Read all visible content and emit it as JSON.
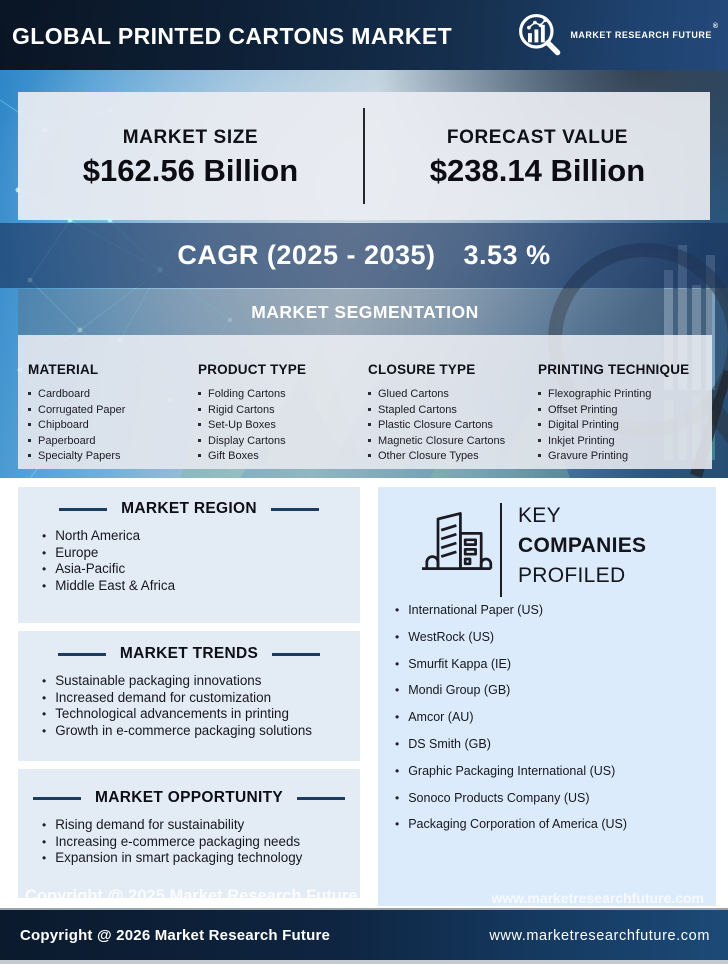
{
  "header": {
    "title": "GLOBAL PRINTED CARTONS MARKET",
    "brand": "MARKET RESEARCH FUTURE",
    "registered": "®"
  },
  "stats": {
    "market_size_label": "MARKET SIZE",
    "market_size_value": "$162.56 Billion",
    "forecast_label": "FORECAST VALUE",
    "forecast_value": "$238.14 Billion"
  },
  "cagr": {
    "label": "CAGR (2025 - 2035)",
    "value": "3.53 %"
  },
  "segmentation": {
    "title": "MARKET SEGMENTATION",
    "columns": [
      {
        "title": "MATERIAL",
        "items": [
          "Cardboard",
          "Corrugated Paper",
          "Chipboard",
          "Paperboard",
          "Specialty Papers"
        ]
      },
      {
        "title": "PRODUCT TYPE",
        "items": [
          "Folding Cartons",
          "Rigid Cartons",
          "Set-Up Boxes",
          "Display Cartons",
          "Gift Boxes"
        ]
      },
      {
        "title": "CLOSURE TYPE",
        "items": [
          "Glued Cartons",
          "Stapled Cartons",
          "Plastic Closure Cartons",
          "Magnetic Closure Cartons",
          "Other Closure Types"
        ]
      },
      {
        "title": "PRINTING TECHNIQUE",
        "items": [
          "Flexographic Printing",
          "Offset Printing",
          "Digital Printing",
          "Inkjet Printing",
          "Gravure Printing"
        ]
      }
    ]
  },
  "region": {
    "title": "MARKET REGION",
    "items": [
      "North America",
      "Europe",
      "Asia-Pacific",
      "Middle East & Africa"
    ]
  },
  "trends": {
    "title": "MARKET TRENDS",
    "items": [
      "Sustainable packaging innovations",
      "Increased demand for customization",
      "Technological advancements in printing",
      "Growth in e-commerce packaging solutions"
    ]
  },
  "opportunity": {
    "title": "MARKET OPPORTUNITY",
    "items": [
      "Rising demand for sustainability",
      "Increasing e-commerce packaging needs",
      "Expansion in smart packaging technology"
    ]
  },
  "companies": {
    "title_line1": "KEY",
    "title_line2": "COMPANIES",
    "title_line3": "PROFILED",
    "items": [
      "International Paper (US)",
      "WestRock (US)",
      "Smurfit Kappa (IE)",
      "Mondi Group (GB)",
      "Amcor (AU)",
      "DS Smith (GB)",
      "Graphic Packaging International (US)",
      "Sonoco Products Company (US)",
      "Packaging Corporation of America (US)"
    ]
  },
  "watermark": {
    "left": "Copyright @ 2025 Market Research Future",
    "right": "www.marketresearchfuture.com"
  },
  "footer": {
    "copyright": "Copyright @ 2026 Market Research Future",
    "website": "www.marketresearchfuture.com"
  },
  "colors": {
    "header_navy": "#0e2138",
    "accent_blue": "#2e86c8",
    "band_navy": "#18305a",
    "panel_gray": "#e9ecf1",
    "panel_blue_left": "#e3ecf5",
    "panel_blue_right": "#dcebfb",
    "rule_navy": "#1c3c63",
    "footer_navy": "#0e2440"
  }
}
